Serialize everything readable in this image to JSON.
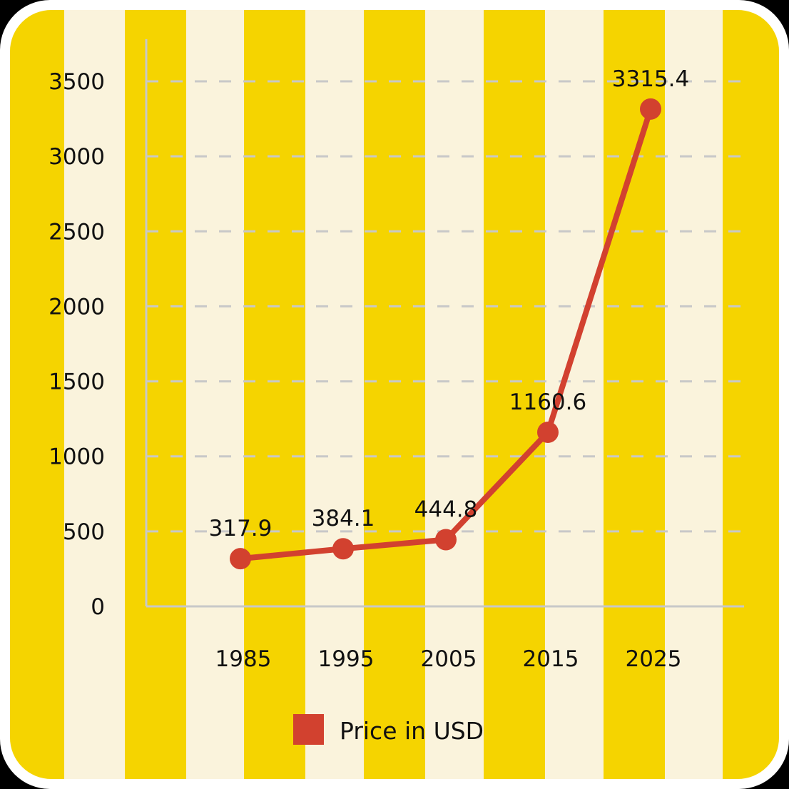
{
  "chart_data": {
    "type": "line",
    "categories": [
      "1985",
      "1995",
      "2005",
      "2015",
      "2025"
    ],
    "series": [
      {
        "name": "Price in USD",
        "values": [
          317.9,
          384.1,
          444.8,
          1160.6,
          3315.4
        ],
        "color": "#d2412f"
      }
    ],
    "data_labels": [
      "317.9",
      "384.1",
      "444.8",
      "1160.6",
      "3315.4"
    ],
    "yticks": [
      0,
      500,
      1000,
      1500,
      2000,
      2500,
      3000,
      3500
    ],
    "ylim": [
      0,
      3500
    ],
    "grid": true,
    "legend_position": "bottom",
    "title": "",
    "xlabel": "",
    "ylabel": "",
    "colors": {
      "stripe": "#f5d400",
      "background": "#faf3dc",
      "grid": "#c8c8c8",
      "axis": "#c8c8c8"
    }
  }
}
